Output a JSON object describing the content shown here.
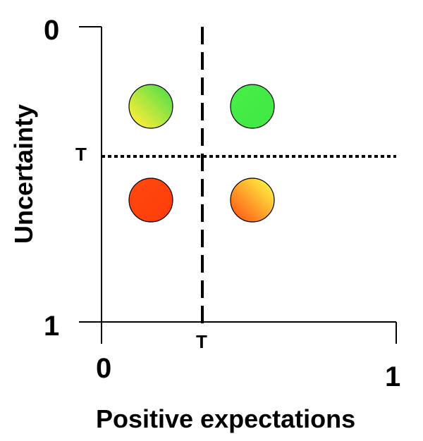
{
  "axes": {
    "x_label": "Positive expectations",
    "y_label": "Uncertainty",
    "x_min_label": "0",
    "x_max_label": "1",
    "y_top_label": "0",
    "y_bottom_label": "1"
  },
  "thresholds": {
    "x_label": "T",
    "y_label": "T"
  },
  "quadrants": [
    {
      "name": "low-expectation-low-uncertainty",
      "gradient": [
        "#ecec3a",
        "#44dd44"
      ]
    },
    {
      "name": "high-expectation-low-uncertainty",
      "gradient": [
        "#44ee44",
        "#44ee44"
      ]
    },
    {
      "name": "low-expectation-high-uncertainty",
      "gradient": [
        "#ff4010",
        "#ff4010"
      ]
    },
    {
      "name": "high-expectation-high-uncertainty",
      "gradient": [
        "#ffe040",
        "#ff5010"
      ]
    }
  ]
}
